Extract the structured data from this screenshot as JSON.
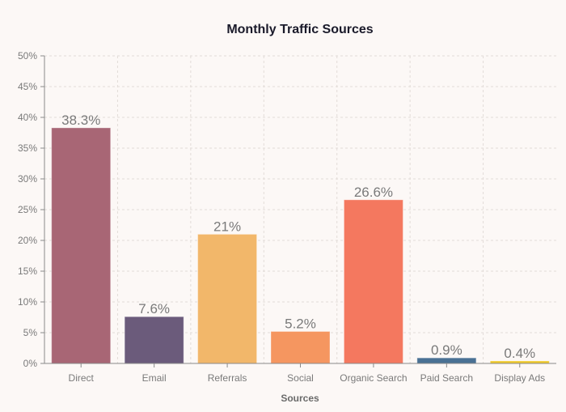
{
  "chart_data": {
    "type": "bar",
    "title": "Monthly Traffic Sources",
    "xlabel": "Sources",
    "ylabel": "",
    "ylim": [
      0,
      50
    ],
    "yticks": [
      "0%",
      "5%",
      "10%",
      "15%",
      "20%",
      "25%",
      "30%",
      "35%",
      "40%",
      "45%",
      "50%"
    ],
    "grid": true,
    "categories": [
      "Direct",
      "Email",
      "Referrals",
      "Social",
      "Organic Search",
      "Paid Search",
      "Display Ads"
    ],
    "values": [
      38.3,
      7.6,
      21,
      5.2,
      26.6,
      0.9,
      0.4
    ],
    "labels": [
      "38.3%",
      "7.6%",
      "21%",
      "5.2%",
      "26.6%",
      "0.9%",
      "0.4%"
    ],
    "colors": [
      "#a86675",
      "#6b5b7b",
      "#f2b76a",
      "#f59660",
      "#f4785f",
      "#4a7194",
      "#f0c929"
    ]
  }
}
